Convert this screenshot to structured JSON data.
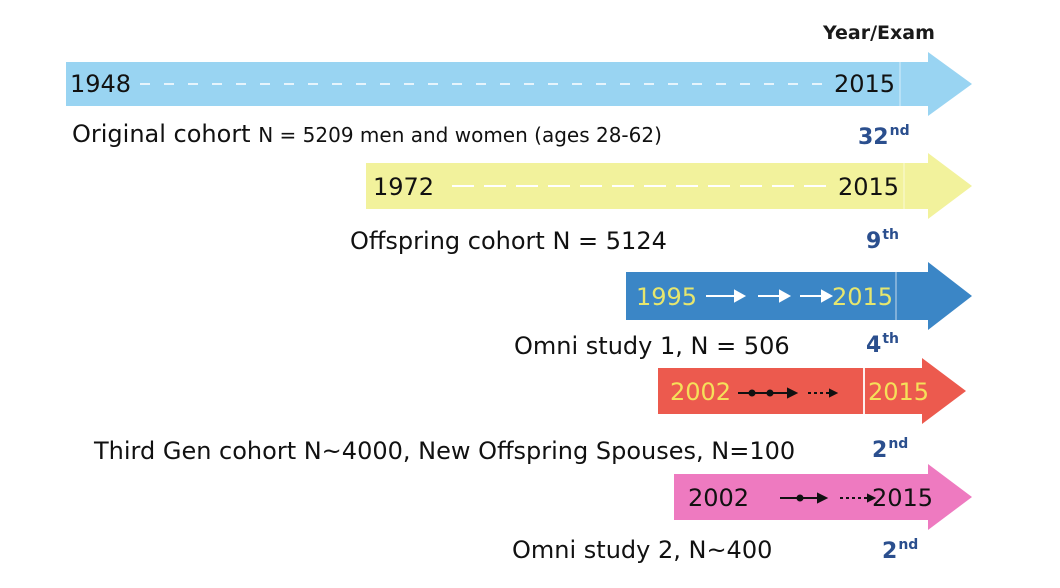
{
  "header": {
    "label": "Year/Exam"
  },
  "cohorts": [
    {
      "start_year": "1948",
      "end_year": "2015",
      "label_main": "Original cohort",
      "label_detail": "N = 5209 men and women (ages 28-62)",
      "exam_number": "32",
      "exam_suffix": "nd",
      "color": "#99d4f2"
    },
    {
      "start_year": "1972",
      "end_year": "2015",
      "label": "Offspring cohort N = 5124",
      "exam_number": "9",
      "exam_suffix": "th",
      "color": "#f2f29c"
    },
    {
      "start_year": "1995",
      "end_year": "2015",
      "label": "Omni study 1, N = 506",
      "exam_number": "4",
      "exam_suffix": "th",
      "color": "#3b86c6",
      "year_color": "#e6e66e"
    },
    {
      "start_year": "2002",
      "end_year": "2015",
      "label": "Third Gen cohort N~4000,  New Offspring Spouses, N=100",
      "exam_number": "2",
      "exam_suffix": "nd",
      "color": "#ec5a4e",
      "year_color": "#f5e05a"
    },
    {
      "start_year": "2002",
      "end_year": "2015",
      "label": "Omni study 2, N~400",
      "exam_number": "2",
      "exam_suffix": "nd",
      "color": "#ee7ac0"
    }
  ]
}
